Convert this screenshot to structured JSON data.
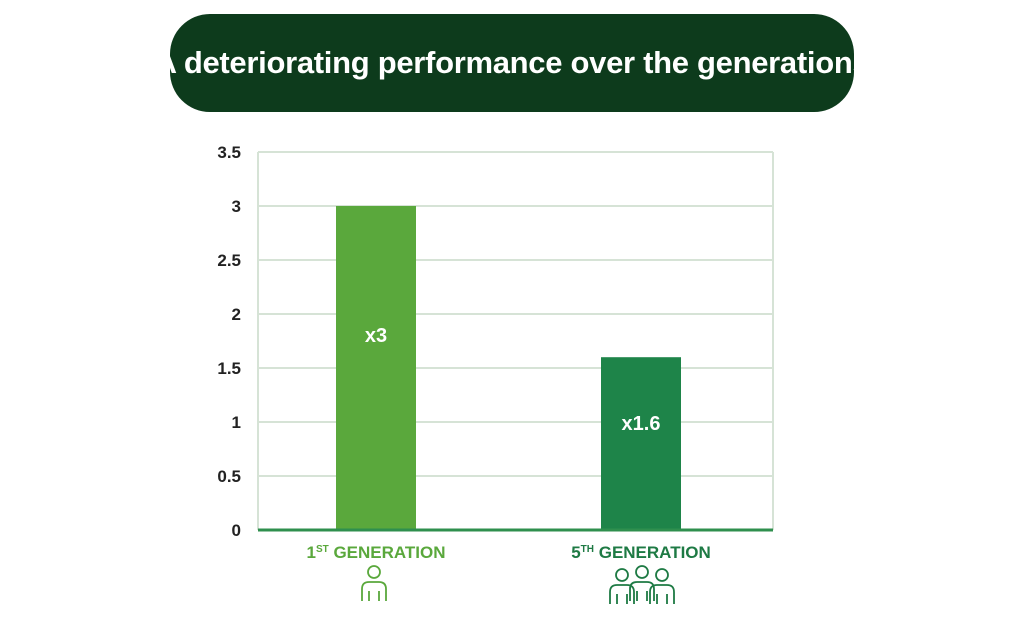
{
  "title": "A deteriorating performance over the generations",
  "colors": {
    "banner": "#0d3b1c",
    "bar_1st": "#5aa83c",
    "bar_5th": "#1e8449",
    "label_1st": "#5aa83c",
    "label_5th": "#1e7a44",
    "grid": "#d6e3d6",
    "axis": "#2f8f4e"
  },
  "chart_data": {
    "type": "bar",
    "categories": [
      {
        "num": "1",
        "sup": "ST",
        "rest": " GENERATION",
        "icon": "person-icon"
      },
      {
        "num": "5",
        "sup": "TH",
        "rest": " GENERATION",
        "icon": "group-icon"
      }
    ],
    "values": [
      3,
      1.6
    ],
    "data_labels": [
      "x3",
      "x1.6"
    ],
    "yticks": [
      "0",
      "0.5",
      "1",
      "1.5",
      "2",
      "2.5",
      "3",
      "3.5"
    ],
    "ylim": [
      0,
      3.5
    ],
    "grid": true
  }
}
